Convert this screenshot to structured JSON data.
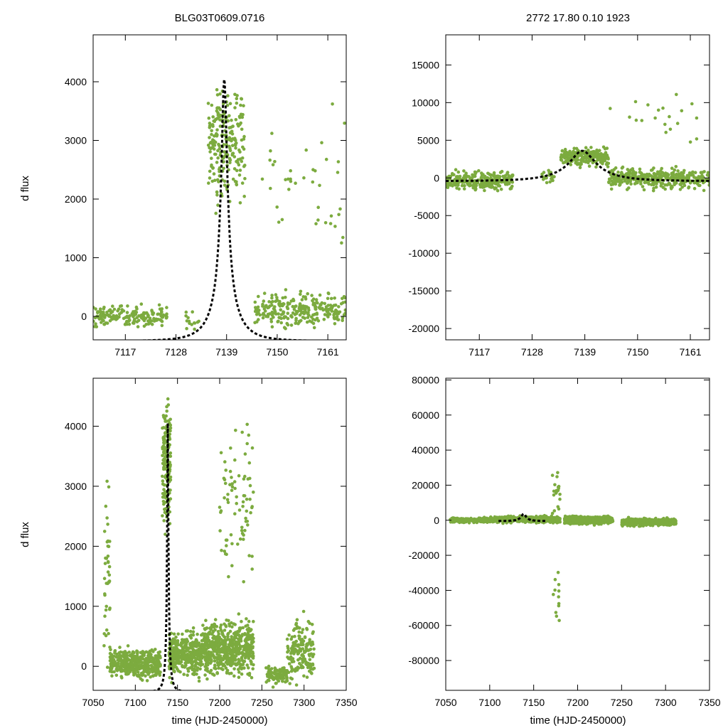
{
  "figure": {
    "top_left_title": "BLG03T0609.0716",
    "top_right_title": "2772  17.80  0.10  1923",
    "ylabel": "d flux",
    "xlabel": "time (HJD-2450000)"
  },
  "colors": {
    "points": "#7cab3f",
    "fit": "#000000",
    "frame": "#000000"
  },
  "chart_data": [
    {
      "type": "scatter",
      "panel": "top-left",
      "title": "BLG03T0609.0716",
      "xlabel": "",
      "ylabel": "d flux",
      "xlim": [
        7110,
        7165
      ],
      "ylim": [
        -400,
        4800
      ],
      "xticks": [
        7117,
        7128,
        7139,
        7150,
        7161
      ],
      "yticks": [
        0,
        1000,
        2000,
        3000,
        4000
      ],
      "grid": false,
      "fit": {
        "model": "pspl",
        "t0": 7138.5,
        "peak": 4050,
        "baseline": -420,
        "u0": 0.1,
        "tE": 6
      },
      "point_sets": [
        {
          "x_range": [
            7110,
            7126
          ],
          "y_center": 0,
          "y_spread": 260,
          "count": 170
        },
        {
          "x_range": [
            7130,
            7133
          ],
          "y_center": -80,
          "y_spread": 260,
          "count": 14
        },
        {
          "x_range": [
            7135,
            7143
          ],
          "y_center": 3000,
          "y_spread": 1400,
          "count": 220
        },
        {
          "x_range": [
            7145,
            7165
          ],
          "y_center": 120,
          "y_spread": 400,
          "count": 260
        },
        {
          "x_range": [
            7145,
            7165
          ],
          "y_center": 2200,
          "y_spread": 1700,
          "count": 40
        }
      ]
    },
    {
      "type": "scatter",
      "panel": "top-right",
      "title": "2772  17.80  0.10  1923",
      "xlabel": "",
      "ylabel": "",
      "xlim": [
        7110,
        7165
      ],
      "ylim": [
        -21500,
        19000
      ],
      "xticks": [
        7117,
        7128,
        7139,
        7150,
        7161
      ],
      "yticks": [
        15000,
        10000,
        5000,
        0,
        -5000,
        -10000,
        -15000,
        -20000
      ],
      "grid": false,
      "fit": {
        "model": "pspl",
        "t0": 7138.5,
        "peak": 3600,
        "baseline": -420,
        "u0": 0.3,
        "tE": 9
      },
      "point_sets": [
        {
          "x_range": [
            7110,
            7124
          ],
          "y_center": -400,
          "y_spread": 1600,
          "count": 260
        },
        {
          "x_range": [
            7130,
            7133
          ],
          "y_center": 0,
          "y_spread": 1500,
          "count": 20
        },
        {
          "x_range": [
            7134,
            7144
          ],
          "y_center": 2800,
          "y_spread": 1500,
          "count": 230
        },
        {
          "x_range": [
            7144,
            7165
          ],
          "y_center": 0,
          "y_spread": 1800,
          "count": 380
        },
        {
          "x_range": [
            7144,
            7165
          ],
          "y_center": 8000,
          "y_spread": 5000,
          "count": 20
        }
      ]
    },
    {
      "type": "scatter",
      "panel": "bottom-left",
      "title": "",
      "xlabel": "time (HJD-2450000)",
      "ylabel": "d flux",
      "xlim": [
        7050,
        7350
      ],
      "ylim": [
        -400,
        4800
      ],
      "xticks": [
        7050,
        7100,
        7150,
        7200,
        7250,
        7300,
        7350
      ],
      "yticks": [
        0,
        1000,
        2000,
        3000,
        4000
      ],
      "grid": false,
      "fit": {
        "model": "pspl",
        "t0": 7138.5,
        "peak": 4050,
        "baseline": -420,
        "u0": 0.1,
        "tE": 6
      },
      "point_sets": [
        {
          "x_range": [
            7063,
            7070
          ],
          "y_center": 1500,
          "y_spread": 1800,
          "count": 40
        },
        {
          "x_range": [
            7070,
            7130
          ],
          "y_center": 50,
          "y_spread": 350,
          "count": 400
        },
        {
          "x_range": [
            7132,
            7142
          ],
          "y_center": 3400,
          "y_spread": 1400,
          "count": 160
        },
        {
          "x_range": [
            7140,
            7180
          ],
          "y_center": 200,
          "y_spread": 500,
          "count": 350
        },
        {
          "x_range": [
            7180,
            7240
          ],
          "y_center": 300,
          "y_spread": 600,
          "count": 550
        },
        {
          "x_range": [
            7200,
            7240
          ],
          "y_center": 2600,
          "y_spread": 1800,
          "count": 80
        },
        {
          "x_range": [
            7255,
            7280
          ],
          "y_center": -150,
          "y_spread": 250,
          "count": 100
        },
        {
          "x_range": [
            7280,
            7312
          ],
          "y_center": 250,
          "y_spread": 700,
          "count": 170
        }
      ]
    },
    {
      "type": "scatter",
      "panel": "bottom-right",
      "title": "",
      "xlabel": "time (HJD-2450000)",
      "ylabel": "",
      "xlim": [
        7050,
        7350
      ],
      "ylim": [
        -97000,
        81000
      ],
      "xticks": [
        7050,
        7100,
        7150,
        7200,
        7250,
        7300,
        7350
      ],
      "yticks": [
        80000,
        60000,
        40000,
        20000,
        0,
        -20000,
        -40000,
        -60000,
        -80000
      ],
      "grid": false,
      "fit": {
        "model": "pspl",
        "t0": 7138.5,
        "peak": 3600,
        "baseline": -420,
        "u0": 0.3,
        "tE": 9,
        "x_range": [
          7110,
          7165
        ]
      },
      "point_sets": [
        {
          "x_range": [
            7055,
            7100
          ],
          "y_center": 0,
          "y_spread": 1800,
          "count": 250
        },
        {
          "x_range": [
            7100,
            7180
          ],
          "y_center": 500,
          "y_spread": 2500,
          "count": 500
        },
        {
          "x_range": [
            7170,
            7180
          ],
          "y_center": 15000,
          "y_spread": 20000,
          "count": 20
        },
        {
          "x_range": [
            7170,
            7180
          ],
          "y_center": -45000,
          "y_spread": 20000,
          "count": 12
        },
        {
          "x_range": [
            7185,
            7240
          ],
          "y_center": 0,
          "y_spread": 3000,
          "count": 550
        },
        {
          "x_range": [
            7250,
            7312
          ],
          "y_center": -1000,
          "y_spread": 3000,
          "count": 330
        }
      ]
    }
  ]
}
